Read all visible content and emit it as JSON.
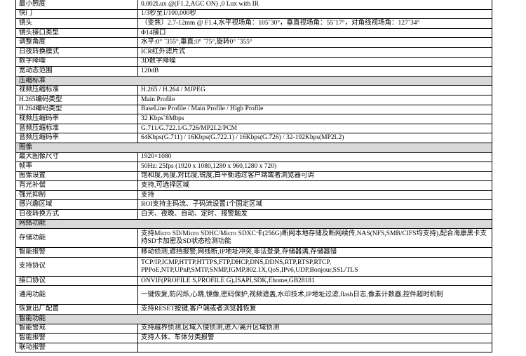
{
  "rows": [
    {
      "label": "最小照度",
      "value": "0.002Lux  @(F1.2,AGC ON) ,0 Lux with IR"
    },
    {
      "label": "快门",
      "value": "1/3秒至1/100,000秒"
    },
    {
      "label": "镜头",
      "value": "（变焦）2.7-12mm @ F1.4,水平视场角：105˜30°，垂直视场角：55˜17°，对角线视场角：127˜34°"
    },
    {
      "label": "镜头接口类型",
      "value": "Φ14接口"
    },
    {
      "label": "调整角度",
      "value": "水平:0° ˜355°,垂直:0° ˜75°,旋转0° ˜355°"
    },
    {
      "label": "日夜转换模式",
      "value": "ICR红外滤片式"
    },
    {
      "label": "数字降噪",
      "value": "3D数字降噪"
    },
    {
      "label": "宽动态范围",
      "value": "120dB"
    },
    {
      "section": "压缩标准"
    },
    {
      "label": "视频压缩标准",
      "value": "H.265 / H.264 /   MJPEG"
    },
    {
      "label": "H.265编码类型",
      "value": "Main Profile"
    },
    {
      "label": "H.264编码类型",
      "value": "BaseLine Profile   / Main Profile / High Profile"
    },
    {
      "label": "视频压缩码率",
      "value": "32 Kbps˜8Mbps"
    },
    {
      "label": "音频压缩标准",
      "value": "G.711/G.722.1/G.726/MP2L2/PCM"
    },
    {
      "label": "音频压缩码率",
      "value": "64Kbps(G.711) /   16Kbps(G.722.1) / 16Kbps(G.726) / 32-192Kbps(MP2L2)"
    },
    {
      "section": "图像"
    },
    {
      "label": "最大图像尺寸",
      "value": "1920×1080"
    },
    {
      "label": "帧率",
      "value": "50Hz: 25fps   (1920 x 1080,1280 x 960,1280 x 720)"
    },
    {
      "label": "图像设置",
      "value": "饱和度,亮度,对比度,锐度,白平衡通过客户端或者浏览器可调"
    },
    {
      "label": "背光补偿",
      "value": "支持,可选择区域"
    },
    {
      "label": "强光抑制",
      "value": "支持"
    },
    {
      "label": "感兴趣区域",
      "value": "ROI支持主码流、子码流设置1个固定区域"
    },
    {
      "label": "日夜转换方式",
      "value": "白天、夜晚、自动、定时、报警触发"
    },
    {
      "section": "网络功能"
    },
    {
      "label": "存储功能",
      "value": "支持Micro SD/Micro SDHC/Micro SDXC卡(256G)断网本地存储及断网续传,NAS(NFS,SMB/CIFS均支持),配合海康黑卡支持SD卡加密及SD状态检测功能",
      "two": true
    },
    {
      "label": "智能报警",
      "value": "移动侦测,遮挡报警,网线断,IP地址冲突,非法登录,存储器满,存储器错"
    },
    {
      "label": "支持协议",
      "value": "TCP/IP,ICMP,HTTP,HTTPS,FTP,DHCP,DNS,DDNS,RTP,RTSP,RTCP, PPPoE,NTP,UPnP,SMTP,SNMP,IGMP,802.1X,QoS,IPv6,UDP,Bonjour,SSL/TLS",
      "two": true
    },
    {
      "label": "接口协议",
      "value": "ONVIF(PROFILE   S,PROFILE G),ISAPI,SDK,Ehome,GB28181"
    },
    {
      "label": "通用功能",
      "value": "一键恢复,防闪烁,心跳,镜像,密码保护,视频遮盖,水印技术,IP地址过滤,flash日志,像素计数器,控件超时机制",
      "two": true
    },
    {
      "label": "恢复出厂配置",
      "value": "支持RESET按键,客户端或者浏览器恢复"
    },
    {
      "section": "智能功能"
    },
    {
      "label": "智能警戒",
      "value": "支持越界侦测,区域入侵侦测,进入/离开区域侦测"
    },
    {
      "label": "智能报警",
      "value": "支持人体、车体分类报警"
    },
    {
      "label": "联动报警",
      "value": ""
    }
  ]
}
